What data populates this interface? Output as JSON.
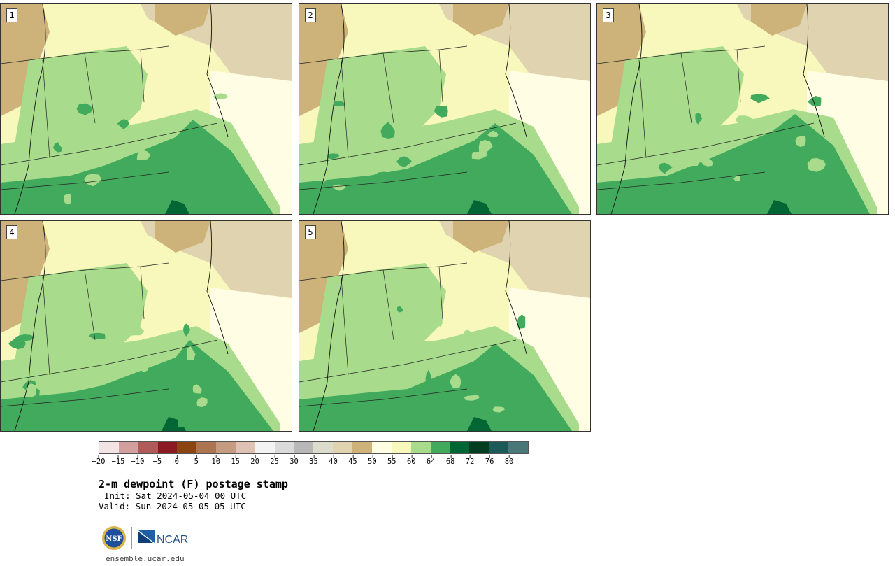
{
  "panels": [
    {
      "label": "1"
    },
    {
      "label": "2"
    },
    {
      "label": "3"
    },
    {
      "label": "4"
    },
    {
      "label": "5"
    }
  ],
  "colorbar": {
    "colors": [
      "#f2e4e4",
      "#d29e9e",
      "#b05a5a",
      "#8c1a22",
      "#8a4512",
      "#ac7450",
      "#c59c82",
      "#dfc2b4",
      "#f2f2f2",
      "#dadada",
      "#b8b8b8",
      "#dcdccc",
      "#e2d3b0",
      "#cdb27a",
      "#fffde4",
      "#f8f8bc",
      "#a8dc8c",
      "#42aa5c",
      "#006633",
      "#003e22",
      "#1c5a5a",
      "#4a7878"
    ],
    "ticks": [
      "−20",
      "−15",
      "−10",
      "−5",
      "0",
      "5",
      "10",
      "15",
      "20",
      "25",
      "30",
      "35",
      "40",
      "45",
      "50",
      "55",
      "60",
      "64",
      "68",
      "72",
      "76",
      "80"
    ]
  },
  "title": "2-m dewpoint (F) postage stamp",
  "init": "Init: Sat 2024-05-04 00 UTC",
  "valid": "Valid: Sun 2024-05-05 05 UTC",
  "logos": {
    "nsf": "NSF",
    "ncar": "NCAR"
  },
  "url": "ensemble.ucar.edu"
}
